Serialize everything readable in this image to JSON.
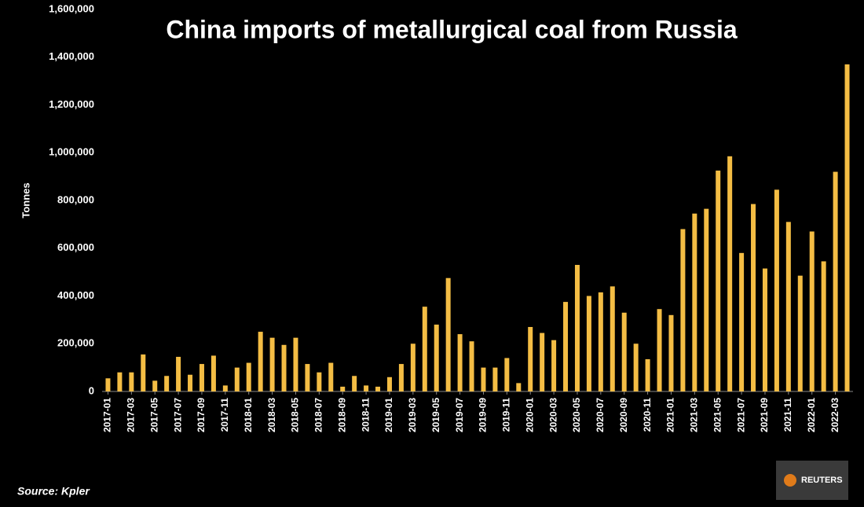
{
  "chart_data": {
    "type": "bar",
    "title": "China imports of metallurgical coal from Russia",
    "y_label": "Tonnes",
    "source": "Source: Kpler",
    "logo": "REUTERS",
    "categories": [
      "2017-01",
      null,
      "2017-03",
      null,
      "2017-05",
      null,
      "2017-07",
      null,
      "2017-09",
      null,
      "2017-11",
      null,
      "2018-01",
      null,
      "2018-03",
      null,
      "2018-05",
      null,
      "2018-07",
      null,
      "2018-09",
      null,
      "2018-11",
      null,
      "2019-01",
      null,
      "2019-03",
      null,
      "2019-05",
      null,
      "2019-07",
      null,
      "2019-09",
      null,
      "2019-11",
      null,
      "2020-01",
      null,
      "2020-03",
      null,
      "2020-05",
      null,
      "2020-07",
      null,
      "2020-09",
      null,
      "2020-11",
      null,
      "2021-01",
      null,
      "2021-03",
      null,
      "2021-05",
      null,
      "2021-07",
      null,
      "2021-09",
      null,
      "2021-11",
      null,
      "2022-01",
      null,
      "2022-03",
      null
    ],
    "values": [
      55000,
      80000,
      80000,
      155000,
      45000,
      65000,
      145000,
      70000,
      115000,
      150000,
      25000,
      100000,
      120000,
      250000,
      225000,
      195000,
      225000,
      115000,
      80000,
      120000,
      20000,
      65000,
      25000,
      20000,
      60000,
      115000,
      200000,
      355000,
      280000,
      475000,
      240000,
      210000,
      100000,
      100000,
      140000,
      35000,
      270000,
      245000,
      215000,
      375000,
      530000,
      400000,
      415000,
      440000,
      330000,
      200000,
      135000,
      345000,
      320000,
      680000,
      745000,
      765000,
      925000,
      985000,
      580000,
      785000,
      515000,
      845000,
      710000,
      485000,
      670000,
      545000,
      920000,
      1370000
    ],
    "color": "#f4bd44",
    "ylim": [
      0,
      1600000
    ],
    "yticks": [
      0,
      {
        "value": 200000,
        "label": "200,000"
      },
      {
        "value": 400000,
        "label": "400,000"
      },
      {
        "value": 600000,
        "label": "600,000"
      },
      {
        "value": 800000,
        "label": "800,000"
      },
      {
        "value": 1000000,
        "label": "1,000,000"
      },
      {
        "value": 1200000,
        "label": "1,200,000"
      },
      {
        "value": 1400000,
        "label": "1,400,000"
      },
      {
        "value": 1600000,
        "label": "1,600,000"
      }
    ],
    "grid": false
  }
}
